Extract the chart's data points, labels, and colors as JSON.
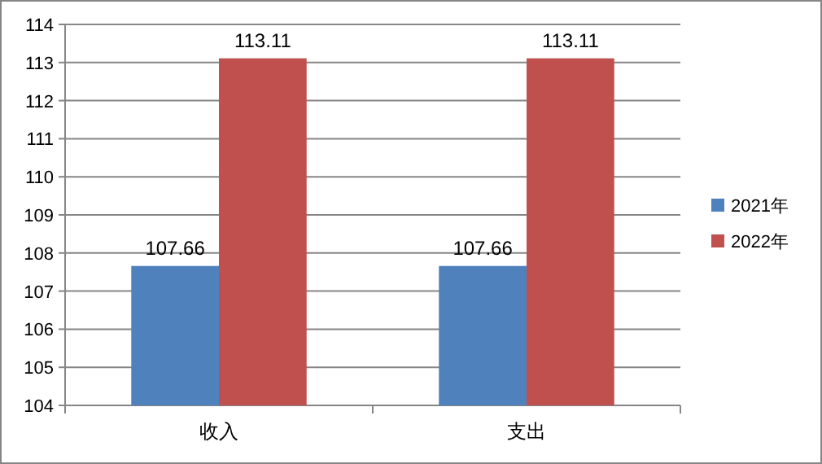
{
  "chart_data": {
    "type": "bar",
    "categories": [
      "收入",
      "支出"
    ],
    "series": [
      {
        "name": "2021年",
        "color": "#4f81bd",
        "values": [
          107.66,
          107.66
        ]
      },
      {
        "name": "2022年",
        "color": "#c0504d",
        "values": [
          113.11,
          113.11
        ]
      }
    ],
    "ylim": [
      104,
      114
    ],
    "yticks": [
      104,
      105,
      106,
      107,
      108,
      109,
      110,
      111,
      112,
      113,
      114
    ],
    "grid": "y",
    "legend": "right",
    "data_labels": true
  }
}
